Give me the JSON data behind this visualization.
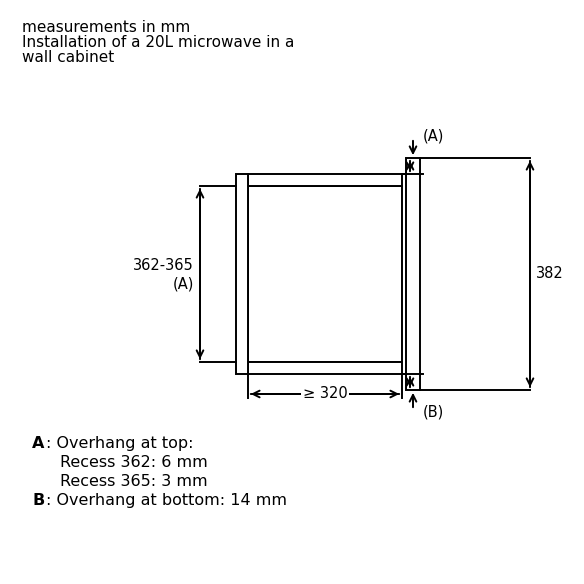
{
  "title_line1": "measurements in mm",
  "title_line2": "Installation of a 20L microwave in a",
  "title_line3": "wall cabinet",
  "bg_color": "#ffffff",
  "line_color": "#000000",
  "dim_A_label_1": "362-365",
  "dim_A_label_2": "(A)",
  "dim_382_label": "382",
  "dim_320_label": "≥ 320",
  "label_A_top": "(A)",
  "label_B_bot": "(B)",
  "legend_A_bold": "A",
  "legend_A_text": ": Overhang at top:",
  "legend_A1": "Recess 362: 6 mm",
  "legend_A2": "Recess 365: 3 mm",
  "legend_B_bold": "B",
  "legend_B_text": ": Overhang at bottom: 14 mm",
  "fig_width": 5.84,
  "fig_height": 5.84,
  "dpi": 100
}
